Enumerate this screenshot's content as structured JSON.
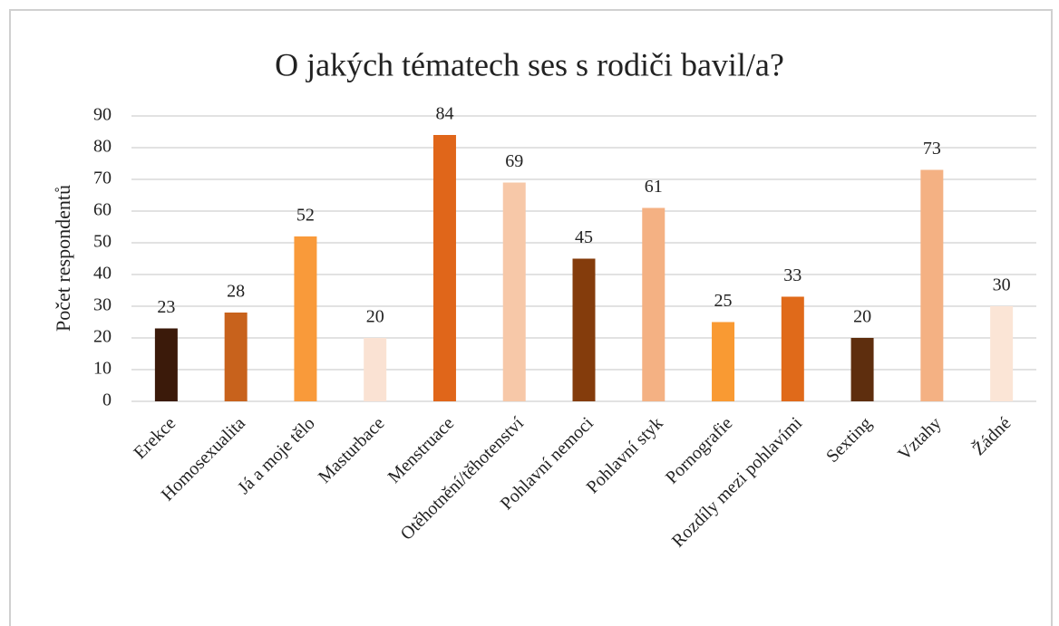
{
  "chart_data": {
    "type": "bar",
    "title": "O jakých tématech ses s rodiči bavil/a?",
    "y_label": "Počet respondentů",
    "categories": [
      "Erekce",
      "Homosexualita",
      "Já a moje tělo",
      "Masturbace",
      "Menstruace",
      "Otěhotnění/těhotenství",
      "Pohlavní nemoci",
      "Pohlavní styk",
      "Pornografie",
      "Rozdíly mezi pohlavími",
      "Sexting",
      "Vztahy",
      "Žádné"
    ],
    "values": [
      23,
      28,
      52,
      20,
      84,
      69,
      45,
      61,
      25,
      33,
      20,
      73,
      30
    ],
    "colors": [
      "#3b1a0a",
      "#c8621c",
      "#f99a3a",
      "#fae2d3",
      "#e0661a",
      "#f7c8a8",
      "#843c0c",
      "#f4b183",
      "#f99a33",
      "#e06a1a",
      "#5e2e0e",
      "#f4b183",
      "#fbe5d6"
    ],
    "ylim": [
      0,
      90
    ],
    "yticks": [
      0,
      10,
      20,
      30,
      40,
      50,
      60,
      70,
      80,
      90
    ],
    "grid": true
  }
}
